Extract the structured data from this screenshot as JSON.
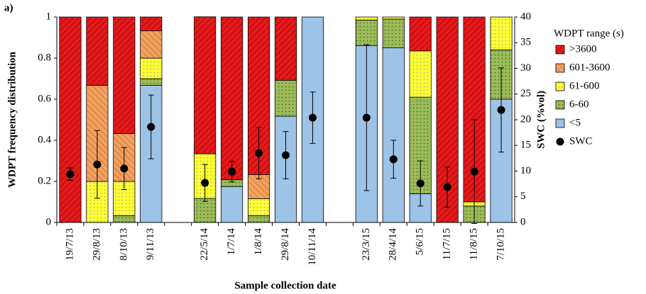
{
  "chart_data": {
    "type": "stacked-bar",
    "annotation": "a)",
    "y_label": "WDPT frequency distribution",
    "y2_label": "SWC (%vol)",
    "x_label": "Sample collection date",
    "legend_title": "WDPT range (s)",
    "categories": [
      "19/7/13",
      "29/8/13",
      "8/10/13",
      "9/11/13",
      null,
      "22/5/14",
      "1/7/14",
      "1/8/14",
      "29/8/14",
      "10/11/14",
      null,
      "23/3/15",
      "28/4/14",
      "5/6/15",
      "11/7/15",
      "11/8/15",
      "7/10/15"
    ],
    "ylim": [
      0,
      1
    ],
    "yticks": [
      0,
      0.2,
      0.4,
      0.6,
      0.8,
      1
    ],
    "y2lim": [
      0,
      40
    ],
    "y2ticks": [
      0,
      5,
      10,
      15,
      20,
      25,
      30,
      35,
      40
    ],
    "series": [
      {
        "name": ">3600",
        "color": "#e41a1c",
        "values": [
          1,
          0.333,
          0.567,
          0.067,
          null,
          0.667,
          0.792,
          0.767,
          0.308,
          0,
          null,
          0,
          0,
          0.165,
          1,
          0.9,
          0
        ]
      },
      {
        "name": "601-3600",
        "color": "#f4a15d",
        "values": [
          0,
          0.467,
          0.233,
          0.133,
          null,
          0,
          0,
          0.117,
          0,
          0,
          null,
          0,
          0,
          0,
          0,
          0,
          0
        ]
      },
      {
        "name": "61-600",
        "color": "#ffff33",
        "values": [
          0,
          0.2,
          0.167,
          0.1,
          null,
          0.217,
          0,
          0.083,
          0,
          0,
          null,
          0.015,
          0.01,
          0.225,
          0,
          0.02,
          0.16
        ]
      },
      {
        "name": "6-60",
        "color": "#9bbb59",
        "values": [
          0,
          0,
          0.033,
          0.033,
          null,
          0.117,
          0.033,
          0.033,
          0.175,
          0,
          null,
          0.125,
          0.14,
          0.47,
          0,
          0.08,
          0.24
        ]
      },
      {
        "name": "<5",
        "color": "#9dc3e6",
        "values": [
          0,
          0,
          0,
          0.667,
          null,
          0,
          0.175,
          0,
          0.517,
          1,
          null,
          0.86,
          0.85,
          0.14,
          0,
          0,
          0.6
        ]
      },
      {
        "name": "SWC",
        "color": "#000000",
        "axis": "y2",
        "values": [
          9.4,
          11.3,
          10.5,
          18.6,
          null,
          7.7,
          9.9,
          13.5,
          13.1,
          20.4,
          null,
          20.4,
          12.3,
          7.6,
          6.9,
          9.9,
          21.9
        ],
        "errors": [
          1.2,
          6.6,
          4.1,
          6.2,
          null,
          3.6,
          2,
          5,
          4.6,
          5,
          null,
          14.2,
          3.7,
          4.4,
          3.9,
          10.1,
          8.2
        ]
      }
    ]
  }
}
